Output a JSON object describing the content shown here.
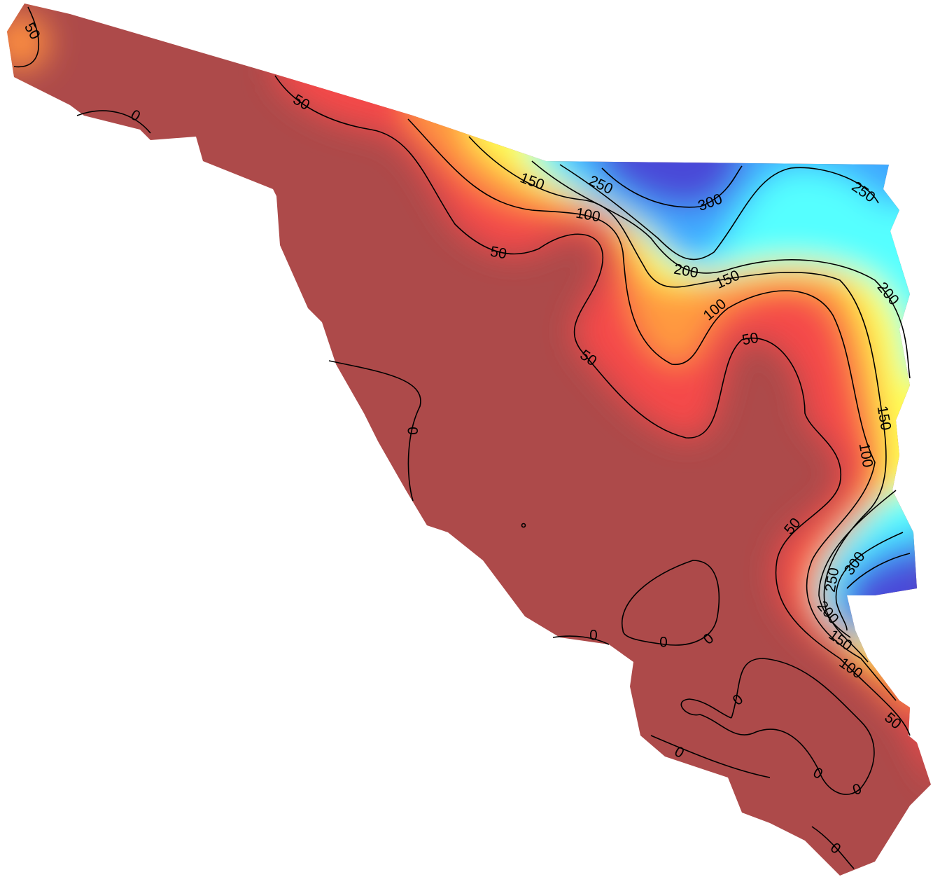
{
  "contour_labels": [
    50,
    0,
    50,
    150,
    250,
    300,
    250,
    100,
    50,
    200,
    150,
    200,
    100,
    50,
    50,
    0,
    150,
    100,
    50,
    300,
    250,
    200,
    0,
    0,
    0,
    150,
    100,
    0,
    50,
    0,
    0,
    0,
    0
  ]
}
